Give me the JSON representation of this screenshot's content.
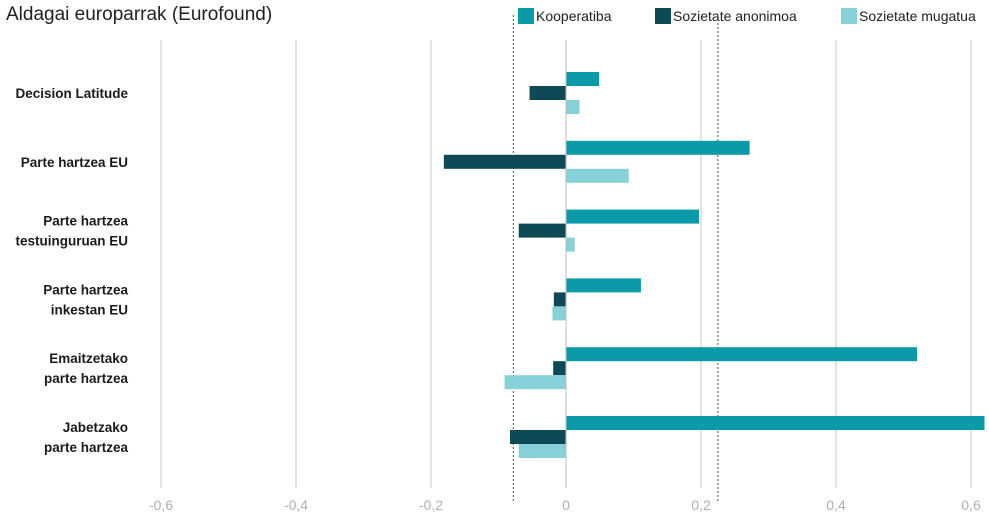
{
  "chart_data": {
    "type": "bar",
    "orientation": "horizontal",
    "title": "Aldagai europarrak (Eurofound)",
    "categories": [
      [
        "Decision Latitude"
      ],
      [
        "Parte hartzea EU"
      ],
      [
        "Parte hartzea",
        "testuinguruan EU"
      ],
      [
        "Parte hartzea",
        "inkestan EU"
      ],
      [
        "Emaitzetako",
        "parte hartzea"
      ],
      [
        "Jabetzako",
        "parte hartzea"
      ]
    ],
    "series": [
      {
        "name": "Kooperatiba",
        "color": "#0a9aa8",
        "values": [
          0.049,
          0.272,
          0.197,
          0.111,
          0.52,
          0.62
        ]
      },
      {
        "name": "Sozietate anonimoa",
        "color": "#0d4a56",
        "values": [
          -0.054,
          -0.181,
          -0.07,
          -0.018,
          -0.019,
          -0.083
        ]
      },
      {
        "name": "Sozietate mugatua",
        "color": "#86d1d8",
        "values": [
          0.02,
          0.093,
          0.013,
          -0.02,
          -0.091,
          -0.07
        ]
      }
    ],
    "xlim": [
      -0.62,
      0.62
    ],
    "x_ticks": [
      -0.6,
      -0.4,
      -0.2,
      0,
      0.2,
      0.4,
      0.6
    ],
    "x_tick_labels": [
      "-0,6",
      "-0,4",
      "-0,2",
      "0",
      "0,2",
      "0,4",
      "0,6"
    ],
    "reference_lines": [
      -0.078,
      0.225
    ],
    "grid": true,
    "legend_position": "top-right"
  }
}
